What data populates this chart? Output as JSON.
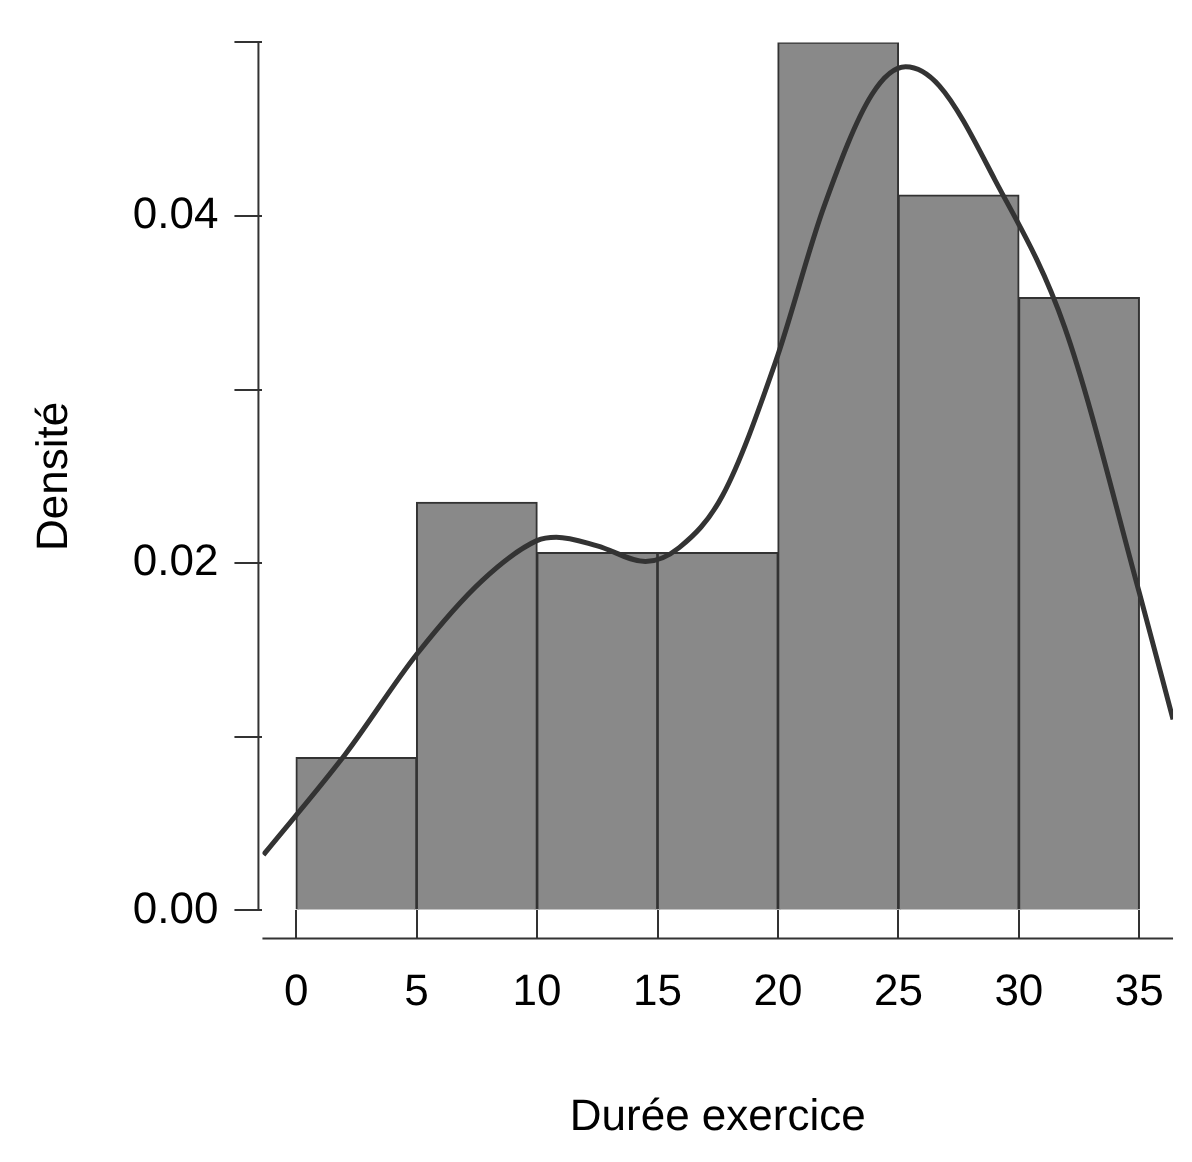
{
  "chart_data": {
    "type": "histogram",
    "xlabel": "Durée exercice",
    "ylabel": "Densité",
    "bins": [
      0,
      5,
      10,
      15,
      20,
      25,
      30,
      35
    ],
    "values": [
      0.0088,
      0.0235,
      0.0206,
      0.0206,
      0.05,
      0.0412,
      0.0353
    ],
    "color": "#898989",
    "series": [
      {
        "type": "line",
        "color": "#333333",
        "x": [
          -1.36,
          2.04,
          5.03,
          7.72,
          9.99,
          10.8,
          12.5,
          14.5,
          15.9,
          17.7,
          19.9,
          21.9,
          23.9,
          25.3,
          26.7,
          29.0,
          31.9,
          35.0,
          36.4
        ],
        "values": [
          0.0032,
          0.009,
          0.0148,
          0.019,
          0.0213,
          0.0215,
          0.021,
          0.0201,
          0.0209,
          0.0239,
          0.0316,
          0.0405,
          0.047,
          0.0486,
          0.0475,
          0.0421,
          0.0336,
          0.0183,
          0.011
        ]
      }
    ],
    "xlim": [
      -1.4,
      36.4
    ],
    "xticks": [
      0,
      5,
      10,
      15,
      20,
      25,
      30,
      35
    ],
    "ylim": [
      0,
      0.05
    ],
    "yticks": [
      {
        "value": 0,
        "label": "0.00"
      },
      {
        "value": 0.01,
        "label": null
      },
      {
        "value": 0.02,
        "label": "0.02"
      },
      {
        "value": 0.03,
        "label": null
      },
      {
        "value": 0.04,
        "label": "0.04"
      },
      {
        "value": 0.05,
        "label": null
      }
    ],
    "grid": false,
    "legend": false
  }
}
